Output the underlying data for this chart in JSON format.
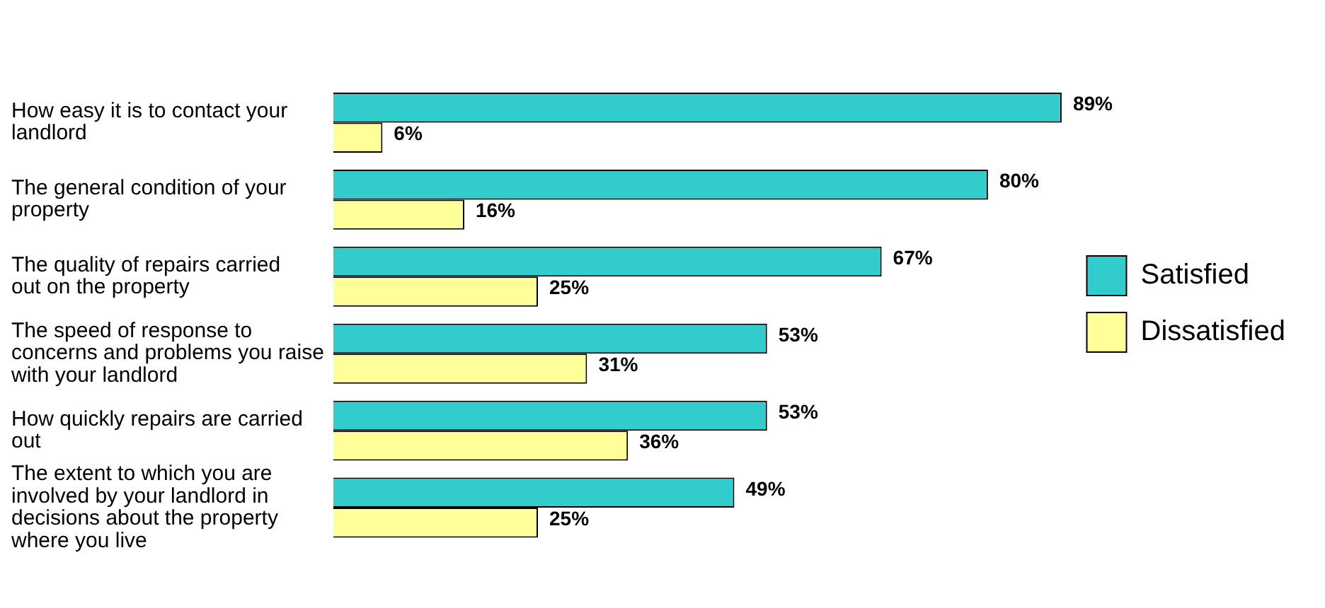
{
  "chart_data": {
    "type": "bar",
    "orientation": "horizontal",
    "legend": "right",
    "categories": [
      "How easy it is to contact your landlord",
      "The general condition of your property",
      "The quality of repairs carried out on the property",
      "The speed of response to concerns and problems you raise with your landlord",
      "How quickly repairs are carried out",
      "The extent to which you are involved by your landlord in decisions about the property where you live"
    ],
    "series": [
      {
        "name": "Satisfied",
        "color": "#33cccc",
        "values": [
          89,
          80,
          67,
          53,
          53,
          49
        ],
        "value_labels": [
          "89%",
          "80%",
          "67%",
          "53%",
          "53%",
          "49%"
        ]
      },
      {
        "name": "Dissatisfied",
        "color": "#ffff99",
        "values": [
          6,
          16,
          25,
          31,
          36,
          25
        ],
        "value_labels": [
          "6%",
          "16%",
          "25%",
          "31%",
          "36%",
          "25%"
        ]
      }
    ]
  }
}
